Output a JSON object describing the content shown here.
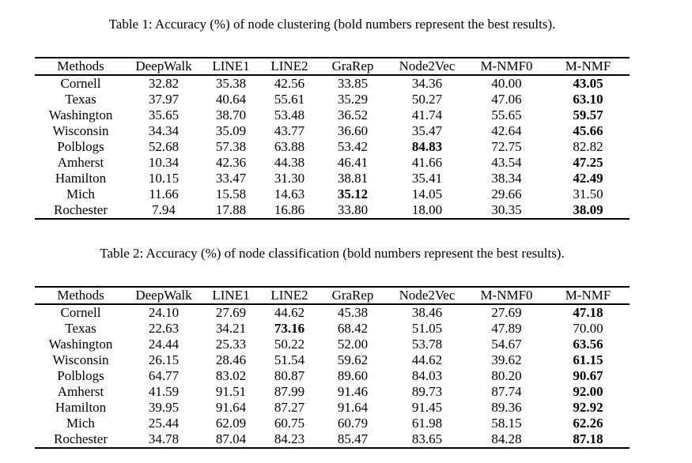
{
  "tables": [
    {
      "caption": "Table 1: Accuracy (%) of node clustering (bold numbers represent the best results).",
      "columns": [
        "Methods",
        "DeepWalk",
        "LINE1",
        "LINE2",
        "GraRep",
        "Node2Vec",
        "M-NMF0",
        "M-NMF"
      ],
      "rows": [
        {
          "method": "Cornell",
          "values": [
            "32.82",
            "35.38",
            "42.56",
            "33.85",
            "34.36",
            "40.00",
            "43.05"
          ],
          "bold_col": 6
        },
        {
          "method": "Texas",
          "values": [
            "37.97",
            "40.64",
            "55.61",
            "35.29",
            "50.27",
            "47.06",
            "63.10"
          ],
          "bold_col": 6
        },
        {
          "method": "Washington",
          "values": [
            "35.65",
            "38.70",
            "53.48",
            "36.52",
            "41.74",
            "55.65",
            "59.57"
          ],
          "bold_col": 6
        },
        {
          "method": "Wisconsin",
          "values": [
            "34.34",
            "35.09",
            "43.77",
            "36.60",
            "35.47",
            "42.64",
            "45.66"
          ],
          "bold_col": 6
        },
        {
          "method": "Polblogs",
          "values": [
            "52.68",
            "57.38",
            "63.88",
            "53.42",
            "84.83",
            "72.75",
            "82.82"
          ],
          "bold_col": 4
        },
        {
          "method": "Amherst",
          "values": [
            "10.34",
            "42.36",
            "44.38",
            "46.41",
            "41.66",
            "43.54",
            "47.25"
          ],
          "bold_col": 6
        },
        {
          "method": "Hamilton",
          "values": [
            "10.15",
            "33.47",
            "31.30",
            "38.81",
            "35.41",
            "38.34",
            "42.49"
          ],
          "bold_col": 6
        },
        {
          "method": "Mich",
          "values": [
            "11.66",
            "15.58",
            "14.63",
            "35.12",
            "14.05",
            "29.66",
            "31.50"
          ],
          "bold_col": 3
        },
        {
          "method": "Rochester",
          "values": [
            "7.94",
            "17.88",
            "16.86",
            "33.80",
            "18.00",
            "30.35",
            "38.09"
          ],
          "bold_col": 6
        }
      ]
    },
    {
      "caption": "Table 2: Accuracy (%) of node classification (bold numbers represent the best results).",
      "columns": [
        "Methods",
        "DeepWalk",
        "LINE1",
        "LINE2",
        "GraRep",
        "Node2Vec",
        "M-NMF0",
        "M-NMF"
      ],
      "rows": [
        {
          "method": "Cornell",
          "values": [
            "24.10",
            "27.69",
            "44.62",
            "45.38",
            "38.46",
            "27.69",
            "47.18"
          ],
          "bold_col": 6
        },
        {
          "method": "Texas",
          "values": [
            "22.63",
            "34.21",
            "73.16",
            "68.42",
            "51.05",
            "47.89",
            "70.00"
          ],
          "bold_col": 2
        },
        {
          "method": "Washington",
          "values": [
            "24.44",
            "25.33",
            "50.22",
            "52.00",
            "53.78",
            "54.67",
            "63.56"
          ],
          "bold_col": 6
        },
        {
          "method": "Wisconsin",
          "values": [
            "26.15",
            "28.46",
            "51.54",
            "59.62",
            "44.62",
            "39.62",
            "61.15"
          ],
          "bold_col": 6
        },
        {
          "method": "Polblogs",
          "values": [
            "64.77",
            "83.02",
            "80.87",
            "89.60",
            "84.03",
            "80.20",
            "90.67"
          ],
          "bold_col": 6
        },
        {
          "method": "Amherst",
          "values": [
            "41.59",
            "91.51",
            "87.99",
            "91.46",
            "89.73",
            "87.74",
            "92.00"
          ],
          "bold_col": 6
        },
        {
          "method": "Hamilton",
          "values": [
            "39.95",
            "91.64",
            "87.27",
            "91.64",
            "91.45",
            "89.36",
            "92.92"
          ],
          "bold_col": 6
        },
        {
          "method": "Mich",
          "values": [
            "25.44",
            "62.09",
            "60.75",
            "60.79",
            "61.98",
            "58.15",
            "62.26"
          ],
          "bold_col": 6
        },
        {
          "method": "Rochester",
          "values": [
            "34.78",
            "87.04",
            "84.23",
            "85.47",
            "83.65",
            "84.28",
            "87.18"
          ],
          "bold_col": 6
        }
      ]
    }
  ]
}
